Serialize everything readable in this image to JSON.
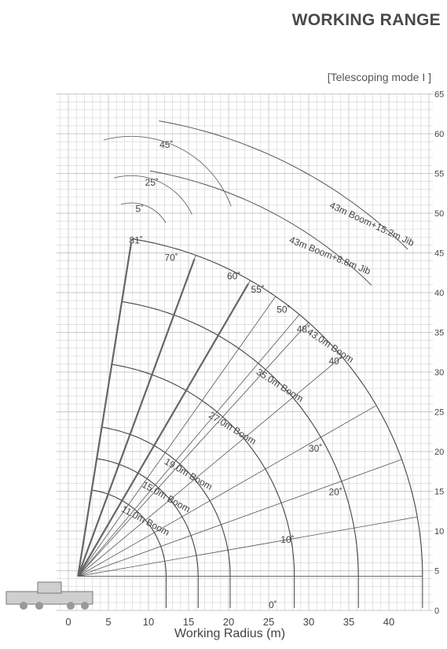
{
  "header": {
    "title": "WORKING RANGE",
    "mode": "[Telescoping mode I ]"
  },
  "axes": {
    "x_label": "Working Radius (m)",
    "x_ticks": [
      "0",
      "5",
      "10",
      "15",
      "20",
      "25",
      "30",
      "35",
      "40"
    ],
    "y_ticks": [
      "0",
      "5",
      "10",
      "15",
      "20",
      "25",
      "30",
      "35",
      "40",
      "45",
      "50",
      "55",
      "60",
      "65"
    ]
  },
  "booms": [
    {
      "label": "11.0m Boom",
      "length": 11.0
    },
    {
      "label": "15.0m Boom",
      "length": 15.0
    },
    {
      "label": "19.0m Boom",
      "length": 19.0
    },
    {
      "label": "27.0m Boom",
      "length": 27.0
    },
    {
      "label": "35.0m Boom",
      "length": 35.0
    },
    {
      "label": "43.0m Boom",
      "length": 43.0
    }
  ],
  "jibs": [
    {
      "label": "43m Boom+8.8m Jib",
      "length": 8.8
    },
    {
      "label": "43m Boom+15.2m Jib",
      "length": 15.2
    }
  ],
  "boom_angles": [
    "0˚",
    "10˚",
    "20˚",
    "30˚",
    "40˚",
    "48˚",
    "50˚",
    "55˚",
    "60˚",
    "70˚",
    "81˚"
  ],
  "offset_angles": [
    "5˚",
    "25˚",
    "45˚"
  ]
}
